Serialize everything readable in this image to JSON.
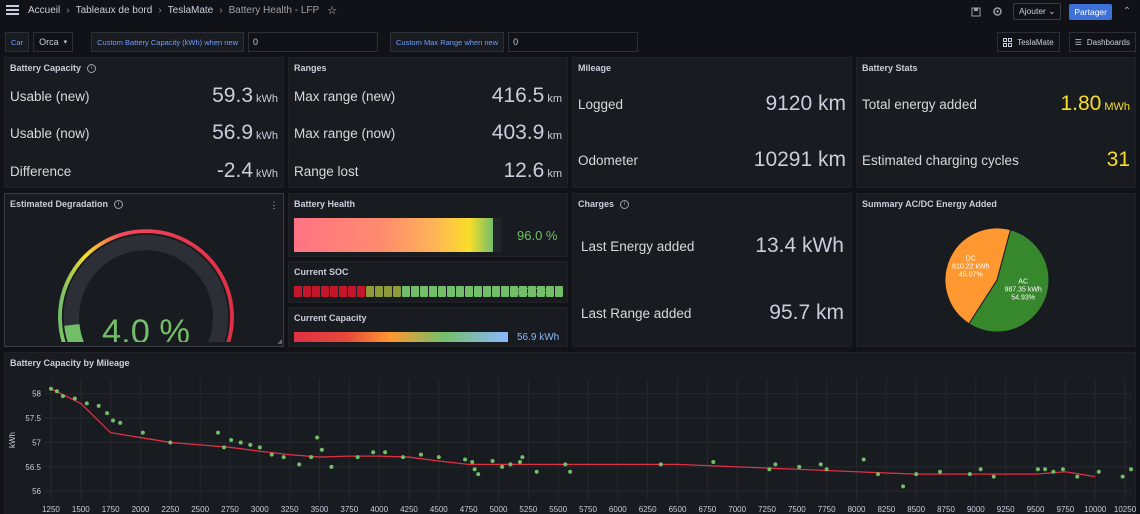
{
  "breadcrumb": {
    "home": "Accueil",
    "dashboards": "Tableaux de bord",
    "folder": "TeslaMate",
    "current": "Battery Health - LFP"
  },
  "topbar": {
    "add_label": "Ajouter",
    "share_label": "Partager"
  },
  "variables": {
    "car_label": "Car",
    "car_value": "Orca",
    "capacity_label": "Custom Battery Capacity (kWh) when new",
    "capacity_value": "0",
    "range_label": "Custom Max Range when new",
    "range_value": "0"
  },
  "links": {
    "teslamate": "TeslaMate",
    "dashboards": "Dashboards"
  },
  "battery_capacity": {
    "title": "Battery Capacity",
    "rows": [
      {
        "label": "Usable (new)",
        "value": "59.3",
        "unit": "kWh"
      },
      {
        "label": "Usable (now)",
        "value": "56.9",
        "unit": "kWh"
      },
      {
        "label": "Difference",
        "value": "-2.4",
        "unit": "kWh"
      }
    ]
  },
  "ranges": {
    "title": "Ranges",
    "rows": [
      {
        "label": "Max range (new)",
        "value": "416.5",
        "unit": "km"
      },
      {
        "label": "Max range (now)",
        "value": "403.9",
        "unit": "km"
      },
      {
        "label": "Range lost",
        "value": "12.6",
        "unit": "km"
      }
    ]
  },
  "mileage": {
    "title": "Mileage",
    "rows": [
      {
        "label": "Logged",
        "value": "9120 km"
      },
      {
        "label": "Odometer",
        "value": "10291 km"
      }
    ]
  },
  "battery_stats": {
    "title": "Battery Stats",
    "rows": [
      {
        "label": "Total energy added",
        "value": "1.80",
        "unit": "MWh"
      },
      {
        "label": "Estimated charging cycles",
        "value": "31"
      }
    ]
  },
  "degradation": {
    "title": "Estimated Degradation",
    "value": "4.0 %",
    "fraction": 0.04
  },
  "battery_health": {
    "title": "Battery Health",
    "value": "96.0 %",
    "fraction": 0.96
  },
  "current_soc": {
    "title": "Current SOC",
    "value": "100.0 %",
    "fraction": 1.0,
    "segments": 30
  },
  "current_capacity": {
    "title": "Current Capacity",
    "value": "56.9 kWh"
  },
  "charges": {
    "title": "Charges",
    "rows": [
      {
        "label": "Last Energy added",
        "value": "13.4 kWh"
      },
      {
        "label": "Last Range added",
        "value": "95.7 km"
      }
    ]
  },
  "energy_pie": {
    "title": "Summary AC/DC Energy Added",
    "slices": [
      {
        "name": "AC",
        "value": 987.35,
        "value_label": "987.35 kWh",
        "percent_label": "54.93%",
        "color": "#37872d"
      },
      {
        "name": "DC",
        "value": 810.22,
        "value_label": "810.22 kWh",
        "percent_label": "45.07%",
        "color": "#ff9830"
      }
    ]
  },
  "colors": {
    "accent": "#3d71d9",
    "green": "#73bf69",
    "yellow": "#fade2a",
    "red": "#f2495c",
    "blue": "#8ab8ff"
  },
  "chart_data": {
    "type": "scatter",
    "title": "Battery Capacity by Mileage",
    "xlabel": "",
    "ylabel": "kWh",
    "xlim": [
      1200,
      10300
    ],
    "ylim": [
      55.8,
      58.3
    ],
    "x_ticks": [
      1250,
      1500,
      1750,
      2000,
      2250,
      2500,
      2750,
      3000,
      3250,
      3500,
      3750,
      4000,
      4250,
      4500,
      4750,
      5000,
      5250,
      5500,
      5750,
      6000,
      6250,
      6500,
      6750,
      7000,
      7250,
      7500,
      7750,
      8000,
      8250,
      8500,
      8750,
      9000,
      9250,
      9500,
      9750,
      10000,
      10250
    ],
    "y_ticks": [
      56,
      56.5,
      57,
      57.5,
      58
    ],
    "grid": true,
    "series": [
      {
        "kind": "scatter",
        "color": "#73bf69",
        "points": [
          [
            1250,
            58.1
          ],
          [
            1300,
            58.05
          ],
          [
            1350,
            57.95
          ],
          [
            1450,
            57.9
          ],
          [
            1550,
            57.8
          ],
          [
            1650,
            57.75
          ],
          [
            1720,
            57.6
          ],
          [
            1770,
            57.45
          ],
          [
            1830,
            57.4
          ],
          [
            2020,
            57.2
          ],
          [
            2250,
            57.0
          ],
          [
            2650,
            57.2
          ],
          [
            2700,
            56.9
          ],
          [
            2760,
            57.05
          ],
          [
            2840,
            57.0
          ],
          [
            2920,
            56.95
          ],
          [
            3000,
            56.9
          ],
          [
            3100,
            56.75
          ],
          [
            3200,
            56.7
          ],
          [
            3330,
            56.55
          ],
          [
            3430,
            56.7
          ],
          [
            3480,
            57.1
          ],
          [
            3520,
            56.85
          ],
          [
            3600,
            56.5
          ],
          [
            3820,
            56.7
          ],
          [
            3950,
            56.8
          ],
          [
            4050,
            56.8
          ],
          [
            4200,
            56.7
          ],
          [
            4350,
            56.75
          ],
          [
            4500,
            56.7
          ],
          [
            4720,
            56.65
          ],
          [
            4780,
            56.6
          ],
          [
            4800,
            56.45
          ],
          [
            4830,
            56.35
          ],
          [
            4950,
            56.62
          ],
          [
            5030,
            56.5
          ],
          [
            5100,
            56.55
          ],
          [
            5180,
            56.6
          ],
          [
            5200,
            56.7
          ],
          [
            5320,
            56.4
          ],
          [
            5560,
            56.55
          ],
          [
            5600,
            56.4
          ],
          [
            6360,
            56.55
          ],
          [
            6800,
            56.6
          ],
          [
            7270,
            56.45
          ],
          [
            7320,
            56.55
          ],
          [
            7520,
            56.5
          ],
          [
            7700,
            56.55
          ],
          [
            7750,
            56.45
          ],
          [
            8060,
            56.65
          ],
          [
            8180,
            56.35
          ],
          [
            8390,
            56.1
          ],
          [
            8500,
            56.35
          ],
          [
            8700,
            56.4
          ],
          [
            8950,
            56.35
          ],
          [
            9040,
            56.45
          ],
          [
            9150,
            56.3
          ],
          [
            9520,
            56.45
          ],
          [
            9580,
            56.45
          ],
          [
            9650,
            56.4
          ],
          [
            9730,
            56.45
          ],
          [
            9850,
            56.3
          ],
          [
            10030,
            56.4
          ],
          [
            10230,
            56.3
          ],
          [
            10300,
            56.45
          ]
        ]
      },
      {
        "kind": "line",
        "color": "#e02f44",
        "points": [
          [
            1250,
            58.1
          ],
          [
            1500,
            57.8
          ],
          [
            1750,
            57.2
          ],
          [
            2000,
            57.1
          ],
          [
            2250,
            57.0
          ],
          [
            2500,
            56.95
          ],
          [
            2750,
            56.9
          ],
          [
            3000,
            56.82
          ],
          [
            3250,
            56.75
          ],
          [
            3500,
            56.7
          ],
          [
            3750,
            56.72
          ],
          [
            4000,
            56.72
          ],
          [
            4250,
            56.7
          ],
          [
            4500,
            56.62
          ],
          [
            4750,
            56.55
          ],
          [
            5000,
            56.55
          ],
          [
            5250,
            56.55
          ],
          [
            5500,
            56.55
          ],
          [
            6000,
            56.55
          ],
          [
            6500,
            56.55
          ],
          [
            7000,
            56.5
          ],
          [
            7500,
            56.45
          ],
          [
            8000,
            56.4
          ],
          [
            8500,
            56.35
          ],
          [
            9000,
            56.35
          ],
          [
            9500,
            56.35
          ],
          [
            9750,
            56.4
          ],
          [
            10000,
            56.3
          ]
        ]
      }
    ]
  }
}
